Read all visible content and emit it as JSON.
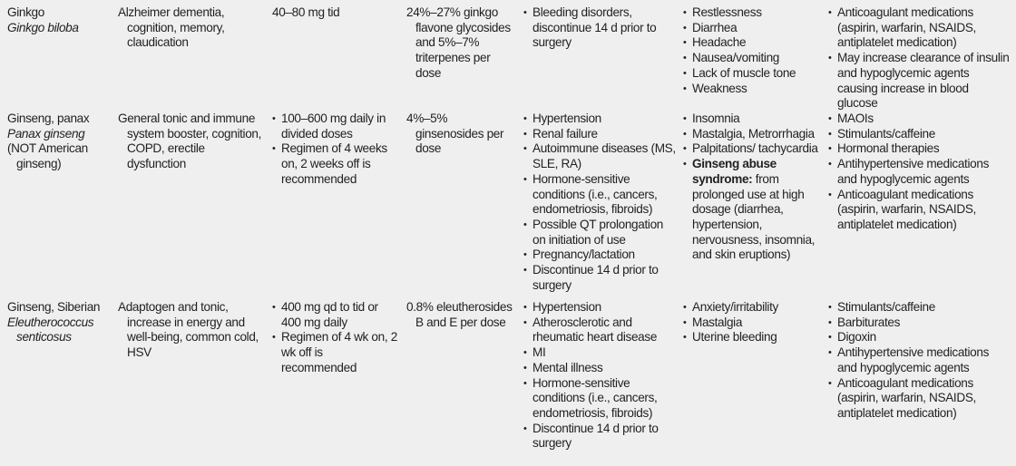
{
  "rows": [
    {
      "herb": [
        "Ginkgo"
      ],
      "latin": "Ginkgo biloba",
      "herb_after": [],
      "uses": "Alzheimer dementia, cognition, memory, claudication",
      "dose": {
        "text": "40–80 mg tid"
      },
      "standardization": "24%–27% ginkgo flavone glycosides and 5%–7% triterpenes per dose",
      "contraindications": [
        "Bleeding disorders, discontinue 14 d prior to surgery"
      ],
      "side_effects": [
        {
          "text": "Restlessness"
        },
        {
          "text": "Diarrhea"
        },
        {
          "text": "Headache"
        },
        {
          "text": "Nausea/vomiting"
        },
        {
          "text": "Lack of muscle tone"
        },
        {
          "text": "Weakness"
        }
      ],
      "interactions": [
        "Anticoagulant medications (aspirin, warfarin, NSAIDS, antiplatelet medication)",
        "May increase clearance of insulin and hypoglycemic agents causing increase in blood glucose"
      ]
    },
    {
      "herb": [
        "Ginseng, panax"
      ],
      "latin": "Panax ginseng",
      "herb_after": [
        "(NOT American ginseng)"
      ],
      "uses": "General tonic and immune system booster, cognition, COPD, erectile dysfunction",
      "dose": {
        "list": [
          "100–600 mg daily in divided doses",
          "Regimen of 4 weeks on, 2 weeks off is recommended"
        ]
      },
      "standardization": "4%–5% ginsenosides per dose",
      "contraindications": [
        "Hypertension",
        "Renal failure",
        "Autoimmune diseases (MS, SLE, RA)",
        "Hormone-sensitive conditions (i.e., cancers, endometriosis, fibroids)",
        "Possible QT prolongation on initiation of use",
        "Pregnancy/lactation",
        "Discontinue 14 d prior to surgery"
      ],
      "side_effects": [
        {
          "text": "Insomnia"
        },
        {
          "text": "Mastalgia, Metrorrhagia"
        },
        {
          "text": "Palpitations/ tachycardia"
        },
        {
          "bold": "Ginseng abuse syndrome:",
          "text": " from prolonged use at high dosage (diarrhea, hypertension, nervousness, insomnia, and skin eruptions)"
        }
      ],
      "interactions": [
        "MAOIs",
        "Stimulants/caffeine",
        "Hormonal therapies",
        "Antihypertensive medications and hypoglycemic agents",
        "Anticoagulant medications (aspirin, warfarin, NSAIDS, antiplatelet medication)"
      ]
    },
    {
      "herb": [
        "Ginseng, Siberian"
      ],
      "latin": "Eleutherococcus senticosus",
      "herb_after": [],
      "uses": "Adaptogen and tonic, increase in energy and well-being, common cold, HSV",
      "dose": {
        "list": [
          "400 mg qd to tid or 400 mg daily",
          "Regimen of 4 wk on, 2 wk off is recommended"
        ]
      },
      "standardization": "0.8% eleutherosides B and E per dose",
      "contraindications": [
        "Hypertension",
        "Atherosclerotic and rheumatic heart disease",
        "MI",
        "Mental illness",
        "Hormone-sensitive conditions (i.e., cancers, endometriosis, fibroids)",
        "Discontinue 14 d prior to surgery"
      ],
      "side_effects": [
        {
          "text": "Anxiety/irritability"
        },
        {
          "text": "Mastalgia"
        },
        {
          "text": "Uterine bleeding"
        }
      ],
      "interactions": [
        "Stimulants/caffeine",
        "Barbiturates",
        "Digoxin",
        "Antihypertensive medications and hypoglycemic agents",
        "Anticoagulant medications (aspirin, warfarin, NSAIDS, antiplatelet medication)"
      ]
    }
  ]
}
